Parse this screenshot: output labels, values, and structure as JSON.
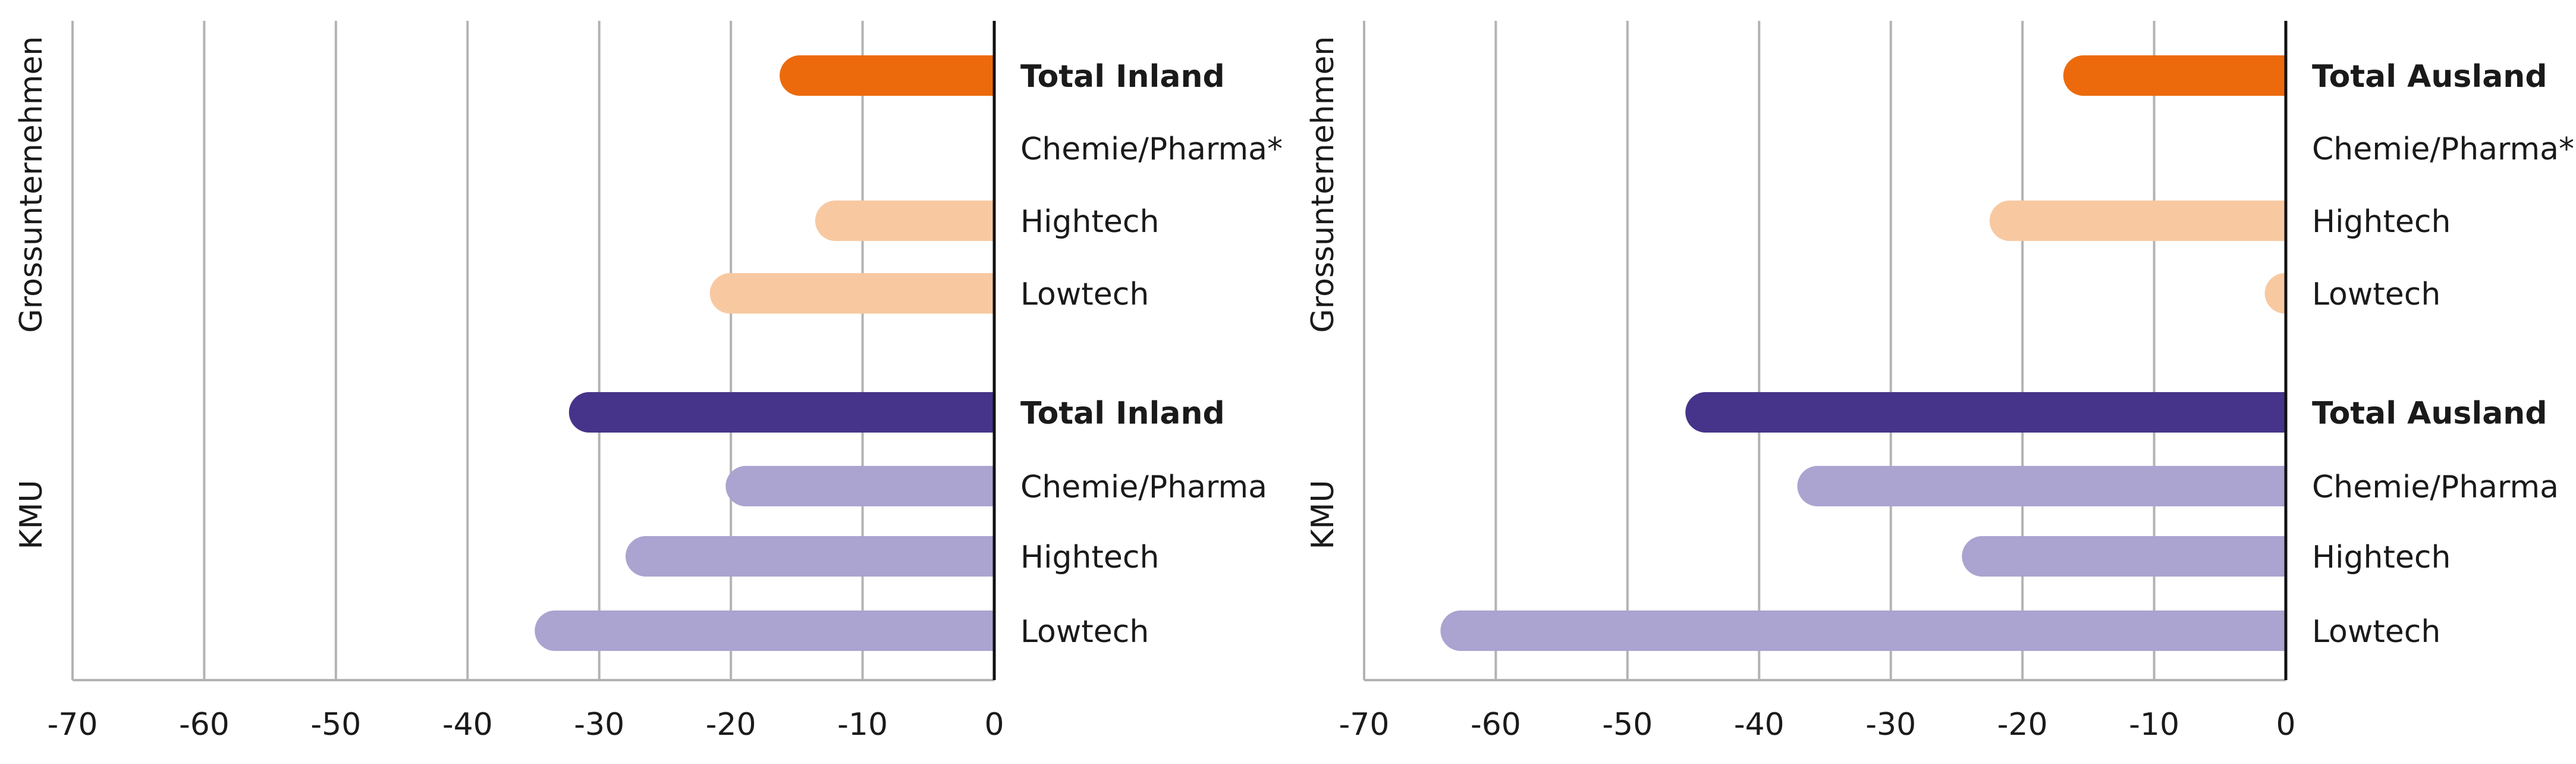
{
  "chart_data": [
    {
      "type": "bar",
      "orientation": "horizontal",
      "xlim": [
        -70,
        0
      ],
      "x_ticks": [
        "-70",
        "-60",
        "-50",
        "-40",
        "-30",
        "-20",
        "-10",
        "0"
      ],
      "grid": "vertical",
      "groups": [
        {
          "label": "Grossunternehmen",
          "bars": [
            {
              "label": "Total Inland",
              "value": -16.3,
              "bold": true,
              "color": "#EC6A0C"
            },
            {
              "label": "Chemie/Pharma*",
              "value": null,
              "bold": false,
              "color": "#F8C9A1"
            },
            {
              "label": "Hightech",
              "value": -13.6,
              "bold": false,
              "color": "#F8C9A1"
            },
            {
              "label": "Lowtech",
              "value": -21.6,
              "bold": false,
              "color": "#F8C9A1"
            }
          ]
        },
        {
          "label": "KMU",
          "bars": [
            {
              "label": "Total Inland",
              "value": -32.3,
              "bold": true,
              "color": "#46348A"
            },
            {
              "label": "Chemie/Pharma",
              "value": -20.4,
              "bold": false,
              "color": "#ABA3D0"
            },
            {
              "label": "Hightech",
              "value": -28.0,
              "bold": false,
              "color": "#ABA3D0"
            },
            {
              "label": "Lowtech",
              "value": -34.9,
              "bold": false,
              "color": "#ABA3D0"
            }
          ]
        }
      ]
    },
    {
      "type": "bar",
      "orientation": "horizontal",
      "xlim": [
        -70,
        0
      ],
      "x_ticks": [
        "-70",
        "-60",
        "-50",
        "-40",
        "-30",
        "-20",
        "-10",
        "0"
      ],
      "grid": "vertical",
      "groups": [
        {
          "label": "Grossunternehmen",
          "bars": [
            {
              "label": "Total Ausland",
              "value": -16.9,
              "bold": true,
              "color": "#EC6A0C"
            },
            {
              "label": "Chemie/Pharma*",
              "value": null,
              "bold": false,
              "color": "#F8C9A1"
            },
            {
              "label": "Hightech",
              "value": -22.5,
              "bold": false,
              "color": "#F8C9A1"
            },
            {
              "label": "Lowtech",
              "value": -1.6,
              "bold": false,
              "color": "#F8C9A1"
            }
          ]
        },
        {
          "label": "KMU",
          "bars": [
            {
              "label": "Total Ausland",
              "value": -45.6,
              "bold": true,
              "color": "#46348A"
            },
            {
              "label": "Chemie/Pharma",
              "value": -37.1,
              "bold": false,
              "color": "#ABA3D0"
            },
            {
              "label": "Hightech",
              "value": -24.6,
              "bold": false,
              "color": "#ABA3D0"
            },
            {
              "label": "Lowtech",
              "value": -64.2,
              "bold": false,
              "color": "#ABA3D0"
            }
          ]
        }
      ]
    }
  ]
}
